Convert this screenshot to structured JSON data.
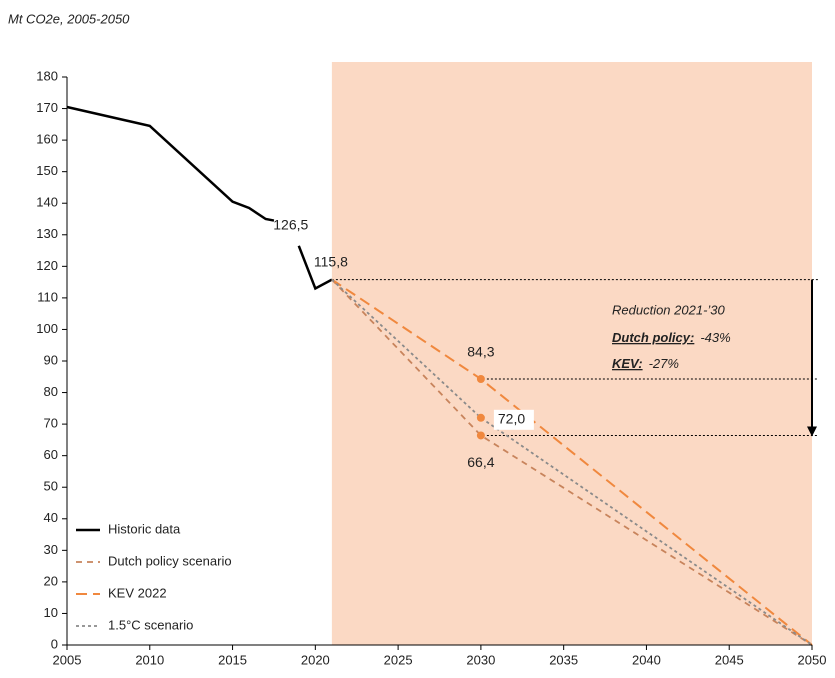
{
  "chart_data": {
    "type": "line",
    "title": "Mt CO2e, 2005-2050",
    "xlim": [
      2005,
      2050
    ],
    "xticks": [
      2005,
      2010,
      2015,
      2020,
      2025,
      2030,
      2035,
      2040,
      2045,
      2050
    ],
    "ylim": [
      0,
      180
    ],
    "yticks": [
      0,
      10,
      20,
      30,
      40,
      50,
      60,
      70,
      80,
      90,
      100,
      110,
      120,
      130,
      140,
      150,
      160,
      170,
      180
    ],
    "grid": false,
    "legend": "lower left",
    "shaded_range": [
      2021,
      2050
    ],
    "shade_color": "#fbd9c4",
    "series": [
      {
        "name": "Historic data",
        "color": "#000000",
        "dash": "solid",
        "x": [
          2005,
          2010,
          2015,
          2016,
          2017,
          2017.5,
          2018,
          2019,
          2020,
          2021
        ],
        "values": [
          170.5,
          164.5,
          140.5,
          138.5,
          135,
          134.5,
          null,
          126.5,
          113,
          115.8
        ],
        "value_labels": [
          null,
          null,
          null,
          null,
          null,
          null,
          null,
          "126,5",
          null,
          "115,8"
        ]
      },
      {
        "name": "Dutch policy scenario",
        "color": "#c8845c",
        "dash": "short",
        "x": [
          2021,
          2030,
          2050
        ],
        "values": [
          115.8,
          66.4,
          0
        ],
        "value_labels": [
          null,
          "66,4",
          null
        ]
      },
      {
        "name": "KEV 2022",
        "color": "#f0883e",
        "dash": "long",
        "x": [
          2021,
          2030,
          2050
        ],
        "values": [
          115.8,
          84.3,
          0
        ],
        "value_labels": [
          null,
          "84,3",
          null
        ]
      },
      {
        "name": "1.5°C scenario",
        "color": "#8a8a8a",
        "dash": "dot",
        "x": [
          2021,
          2030,
          2050
        ],
        "values": [
          115.8,
          72.0,
          0
        ],
        "value_labels": [
          null,
          "72,0",
          null
        ]
      }
    ],
    "annotation": {
      "title": "Reduction 2021-’30",
      "lines": [
        {
          "label": "Dutch policy:",
          "value": "-43%"
        },
        {
          "label": "KEV:",
          "value": "-27%"
        }
      ]
    }
  }
}
